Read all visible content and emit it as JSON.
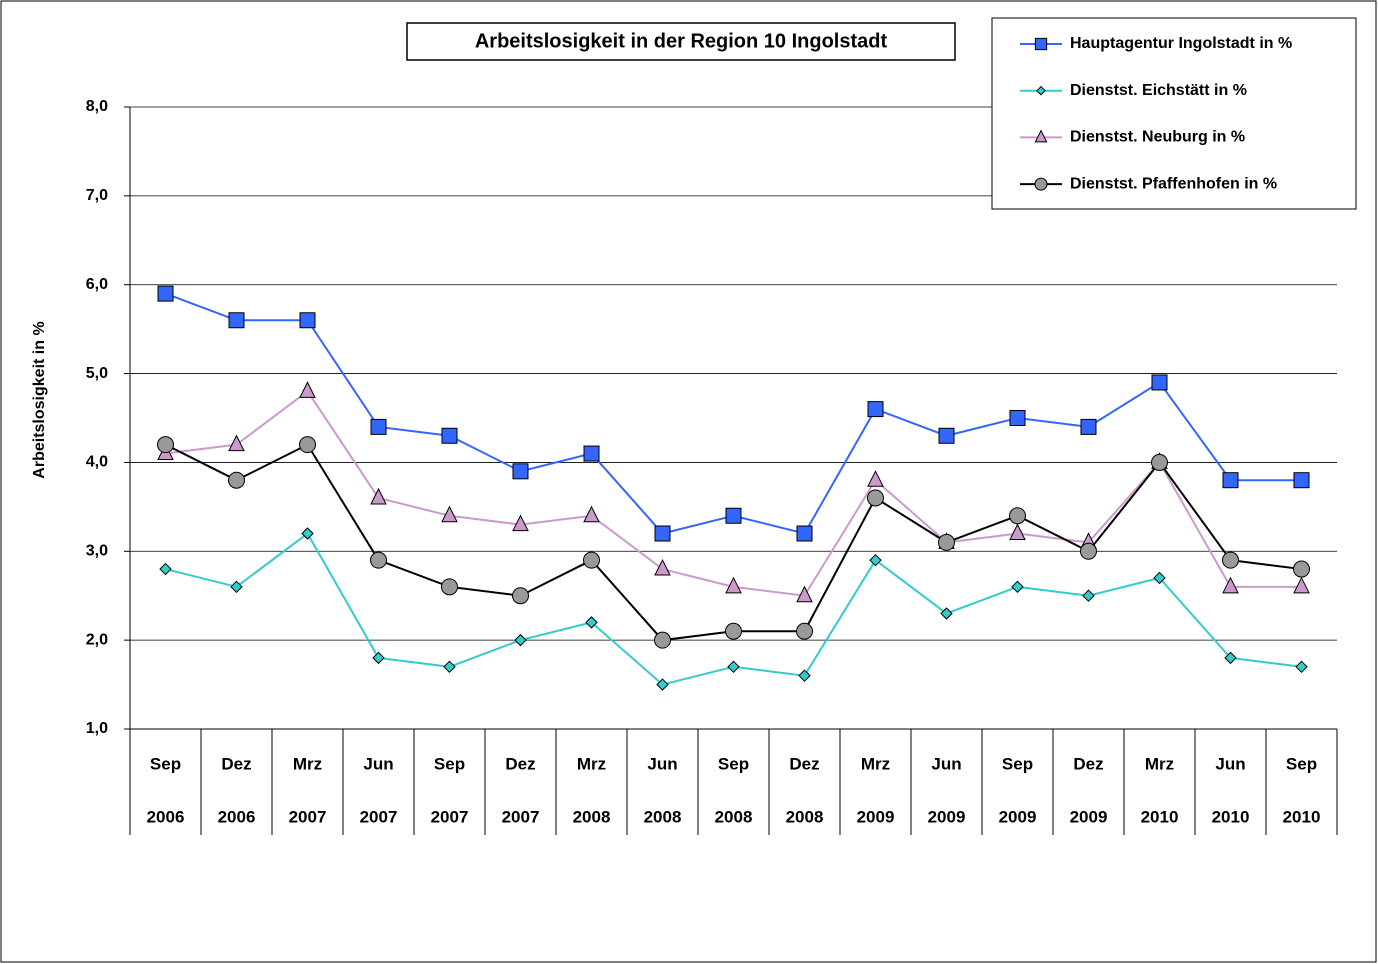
{
  "chart_data": {
    "type": "line",
    "title": "Arbeitslosigkeit in der Region 10 Ingolstadt",
    "y_label": "Arbeitslosigkeit in %",
    "categories": [
      {
        "month": "Sep",
        "year": "2006"
      },
      {
        "month": "Dez",
        "year": "2006"
      },
      {
        "month": "Mrz",
        "year": "2007"
      },
      {
        "month": "Jun",
        "year": "2007"
      },
      {
        "month": "Sep",
        "year": "2007"
      },
      {
        "month": "Dez",
        "year": "2007"
      },
      {
        "month": "Mrz",
        "year": "2008"
      },
      {
        "month": "Jun",
        "year": "2008"
      },
      {
        "month": "Sep",
        "year": "2008"
      },
      {
        "month": "Dez",
        "year": "2008"
      },
      {
        "month": "Mrz",
        "year": "2009"
      },
      {
        "month": "Jun",
        "year": "2009"
      },
      {
        "month": "Sep",
        "year": "2009"
      },
      {
        "month": "Dez",
        "year": "2009"
      },
      {
        "month": "Mrz",
        "year": "2010"
      },
      {
        "month": "Jun",
        "year": "2010"
      },
      {
        "month": "Sep",
        "year": "2010"
      }
    ],
    "series": [
      {
        "name": "Hauptagentur Ingolstadt in %",
        "color": "#3366ff",
        "marker": "square",
        "marker_color": "#3366ff",
        "values": [
          5.9,
          5.6,
          5.6,
          4.4,
          4.3,
          3.9,
          4.1,
          3.2,
          3.4,
          3.2,
          4.6,
          4.3,
          4.5,
          4.4,
          4.9,
          3.8,
          3.8
        ]
      },
      {
        "name": "Dienstst. Eichstätt in %",
        "color": "#33cccc",
        "marker": "diamond",
        "marker_color": "#33cccc",
        "values": [
          2.8,
          2.6,
          3.2,
          1.8,
          1.7,
          2.0,
          2.2,
          1.5,
          1.7,
          1.6,
          2.9,
          2.3,
          2.6,
          2.5,
          2.7,
          1.8,
          1.7
        ]
      },
      {
        "name": "Dienstst. Neuburg in %",
        "color": "#cc99cc",
        "marker": "triangle",
        "marker_color": "#cc99cc",
        "values": [
          4.1,
          4.2,
          4.8,
          3.6,
          3.4,
          3.3,
          3.4,
          2.8,
          2.6,
          2.5,
          3.8,
          3.1,
          3.2,
          3.1,
          4.0,
          2.6,
          2.6
        ]
      },
      {
        "name": "Dienstst. Pfaffenhofen in %",
        "color": "#000000",
        "marker": "circle",
        "marker_color": "#999999",
        "values": [
          4.2,
          3.8,
          4.2,
          2.9,
          2.6,
          2.5,
          2.9,
          2.0,
          2.1,
          2.1,
          3.6,
          3.1,
          3.4,
          3.0,
          4.0,
          2.9,
          2.8
        ]
      }
    ],
    "ylim": [
      1,
      8
    ],
    "yticks": [
      {
        "value": 1,
        "label": "1,0"
      },
      {
        "value": 2,
        "label": "2,0"
      },
      {
        "value": 3,
        "label": "3,0"
      },
      {
        "value": 4,
        "label": "4,0"
      },
      {
        "value": 5,
        "label": "5,0"
      },
      {
        "value": 6,
        "label": "6,0"
      },
      {
        "value": 7,
        "label": "7,0"
      },
      {
        "value": 8,
        "label": "8,0"
      }
    ],
    "grid": true,
    "legend": "top-right"
  }
}
